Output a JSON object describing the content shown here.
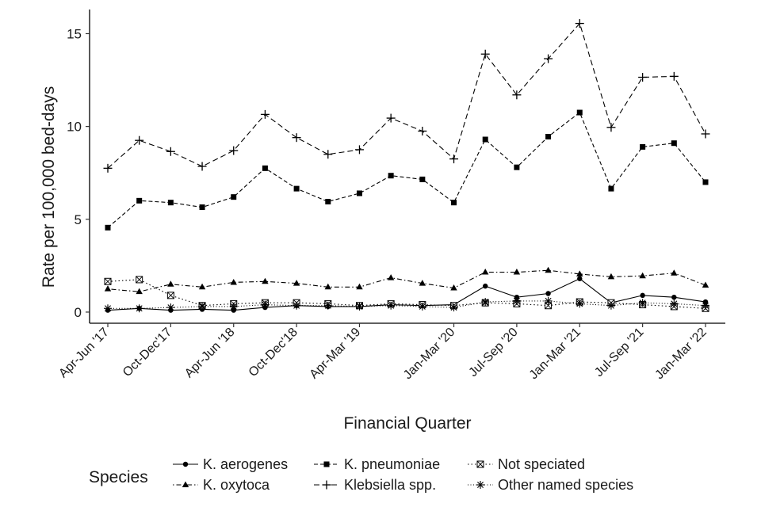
{
  "chart_data": {
    "type": "line",
    "title": "",
    "xlabel": "Financial Quarter",
    "ylabel": "Rate per 100,000 bed-days",
    "ylim": [
      -0.6,
      16.3
    ],
    "yticks": [
      0,
      5,
      10,
      15
    ],
    "grid": false,
    "legend_position": "bottom",
    "legend_title": "Species",
    "tick_labels": [
      "Apr-Jun '17",
      "Oct-Dec'17",
      "Apr-Jun '18",
      "Oct-Dec'18",
      "Apr-Mar '19",
      "Jan-Mar '20",
      "Jul-Sep '20",
      "Jan-Mar '21",
      "Jul-Sep '21",
      "Jan-Mar '22"
    ],
    "tick_positions": [
      0,
      2,
      4,
      6,
      8,
      11,
      13,
      15,
      17,
      19
    ],
    "x": [
      0,
      1,
      2,
      3,
      4,
      5,
      6,
      7,
      8,
      9,
      10,
      11,
      12,
      13,
      14,
      15,
      16,
      17,
      18,
      19
    ],
    "series": [
      {
        "name": "K. aerogenes",
        "style": "solid",
        "marker": "circle",
        "values": [
          0.1,
          0.2,
          0.1,
          0.15,
          0.1,
          0.25,
          0.35,
          0.3,
          0.3,
          0.4,
          0.35,
          0.4,
          1.4,
          0.8,
          1.0,
          1.8,
          0.5,
          0.9,
          0.8,
          0.55
        ]
      },
      {
        "name": "K. oxytoca",
        "style": "dotdash",
        "marker": "triangle",
        "values": [
          1.25,
          1.1,
          1.5,
          1.35,
          1.6,
          1.65,
          1.55,
          1.35,
          1.35,
          1.85,
          1.55,
          1.3,
          2.15,
          2.15,
          2.25,
          2.05,
          1.9,
          1.95,
          2.1,
          1.45
        ]
      },
      {
        "name": "K. pneumoniae",
        "style": "dashed",
        "marker": "square",
        "values": [
          4.55,
          6.0,
          5.9,
          5.65,
          6.2,
          7.75,
          6.65,
          5.95,
          6.4,
          7.35,
          7.15,
          5.9,
          9.3,
          7.8,
          9.45,
          10.75,
          6.65,
          8.9,
          9.1,
          7.0
        ]
      },
      {
        "name": "Klebsiella spp.",
        "style": "longdash",
        "marker": "plus",
        "values": [
          7.75,
          9.25,
          8.65,
          7.85,
          8.7,
          10.65,
          9.4,
          8.5,
          8.75,
          10.45,
          9.75,
          8.25,
          13.9,
          11.7,
          13.65,
          15.55,
          9.95,
          12.65,
          12.7,
          9.6
        ]
      },
      {
        "name": "Not speciated",
        "style": "dotted",
        "marker": "boxed-x",
        "values": [
          1.65,
          1.75,
          0.9,
          0.35,
          0.45,
          0.5,
          0.5,
          0.45,
          0.35,
          0.45,
          0.4,
          0.35,
          0.5,
          0.45,
          0.35,
          0.55,
          0.5,
          0.4,
          0.3,
          0.2
        ]
      },
      {
        "name": "Other named species",
        "style": "dotted-fine",
        "marker": "asterisk",
        "values": [
          0.2,
          0.2,
          0.25,
          0.3,
          0.3,
          0.4,
          0.35,
          0.35,
          0.3,
          0.35,
          0.3,
          0.25,
          0.55,
          0.6,
          0.6,
          0.45,
          0.35,
          0.5,
          0.45,
          0.35
        ]
      }
    ]
  }
}
